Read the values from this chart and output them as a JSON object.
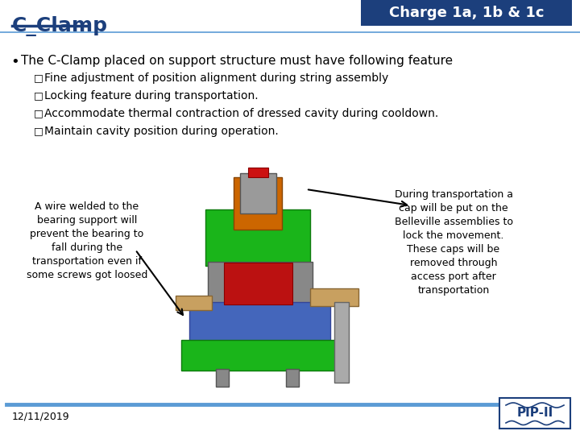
{
  "title_left": "C_Clamp",
  "title_right": "Charge 1a, 1b & 1c",
  "title_right_bg": "#1c3f7c",
  "title_right_color": "#ffffff",
  "title_left_color": "#1c3f7c",
  "bg_color": "#ffffff",
  "bullet_main": "The C-Clamp placed on support structure must have following feature",
  "sub_bullets": [
    "Fine adjustment of position alignment during string assembly",
    "Locking feature during transportation.",
    "Accommodate thermal contraction of dressed cavity during cooldown.",
    "Maintain cavity position during operation."
  ],
  "left_annotation": "A wire welded to the\nbearing support will\nprevent the bearing to\nfall during the\ntransportation even if\nsome screws got loosed",
  "right_annotation": "During transportation a\ncap will be put on the\nBelleville assemblies to\nlock the movement.\nThese caps will be\nremoved through\naccess port after\ntransportation",
  "date": "12/11/2019",
  "footer_line_color": "#5b9bd5",
  "pip2_color": "#1c3f7c",
  "text_color": "#000000",
  "header_underline_color": "#1c3f7c"
}
